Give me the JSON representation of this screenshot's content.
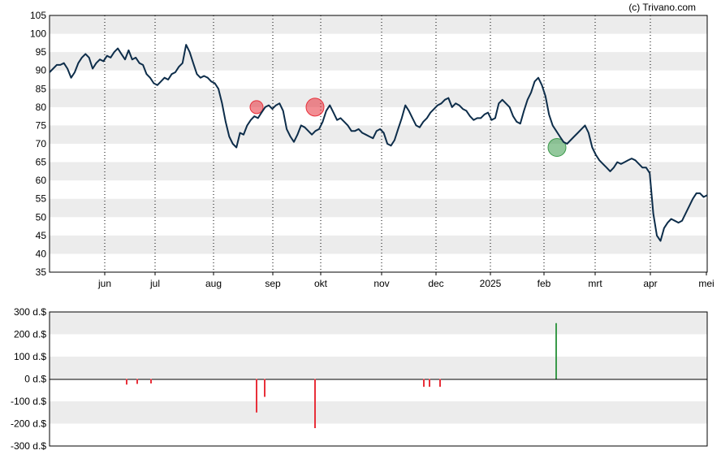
{
  "credit": "(c) Trivano.com",
  "chart_data": [
    {
      "type": "line",
      "title": "",
      "xlabel": "",
      "ylabel": "",
      "ylim": [
        35,
        105
      ],
      "yticks": [
        35,
        40,
        45,
        50,
        55,
        60,
        65,
        70,
        75,
        80,
        85,
        90,
        95,
        100,
        105
      ],
      "x_tick_labels": [
        "jun",
        "jul",
        "aug",
        "sep",
        "okt",
        "nov",
        "dec",
        "2025",
        "feb",
        "mrt",
        "apr",
        "mei"
      ],
      "grid": "alternating horizontal bands, dotted vertical month lines",
      "colors": {
        "line": "#0d2d4a",
        "sell": "#e8303a",
        "buy": "#3a9a4a",
        "band": "#ececec"
      },
      "series": [
        {
          "values": [
            89.5,
            90.5,
            91.5,
            91.5,
            92,
            90.5,
            88,
            89.5,
            92,
            93.5,
            94.5,
            93.5,
            90.5,
            92,
            93,
            92.5,
            94,
            93.5,
            95,
            96,
            94.5,
            93,
            95.5,
            93,
            93.5,
            92,
            91.5,
            89,
            88,
            86.5,
            86,
            87,
            88,
            87.5,
            89,
            89.5,
            91,
            92,
            97,
            95,
            92,
            89,
            88,
            88.5,
            88,
            87,
            86.5,
            85,
            81,
            76,
            72,
            70,
            69,
            73,
            72.5,
            75,
            76.5,
            77.5,
            77,
            78.5,
            80,
            80.5,
            79.5,
            80.5,
            81,
            79,
            74,
            72,
            70.5,
            72.5,
            75,
            74.5,
            73.5,
            72.5,
            73.5,
            74,
            76,
            79,
            80.5,
            78.5,
            76.5,
            77,
            76,
            75,
            73.5,
            73.5,
            74,
            73,
            72.5,
            72,
            71.5,
            73.5,
            74,
            73,
            70,
            69.5,
            71,
            74,
            77,
            80.5,
            79,
            77,
            75,
            74.5,
            76,
            77,
            78.5,
            79.5,
            80.5,
            81,
            82,
            82.5,
            80,
            81,
            80.5,
            79.5,
            79,
            77.5,
            76.5,
            77,
            77,
            78,
            78.5,
            76.5,
            77,
            81,
            82,
            81,
            80,
            77.5,
            76,
            75.5,
            79,
            82,
            84,
            87,
            88,
            86,
            83,
            78,
            75,
            73.5,
            72,
            70.5,
            70,
            71,
            72,
            73,
            74,
            75,
            73,
            69,
            67,
            65.5,
            64.5,
            63.5,
            62.5,
            63.5,
            65,
            64.5,
            65,
            65.5,
            66,
            65.5,
            64.5,
            63.5,
            63.5,
            62,
            51,
            45,
            43.5,
            47,
            48.5,
            49.5,
            49,
            48.5,
            49,
            51,
            53,
            55,
            56.5,
            56.5,
            55.5,
            56
          ]
        }
      ],
      "trade_markers": [
        {
          "type": "sell",
          "price": 80
        },
        {
          "type": "sell",
          "price": 80
        },
        {
          "type": "buy",
          "price": 69
        }
      ]
    },
    {
      "type": "bar",
      "title": "",
      "xlabel": "",
      "ylabel": "",
      "ylim": [
        -300,
        300
      ],
      "yticks": [
        -300,
        -200,
        -100,
        0,
        100,
        200,
        300
      ],
      "ytick_labels": [
        "-300 d.$",
        "-200 d.$",
        "-100 d.$",
        "0 d.$",
        "100 d.$",
        "200 d.$",
        "300 d.$"
      ],
      "series": [
        {
          "values": [
            -25,
            -22,
            -20,
            -150,
            -80,
            -220,
            -35,
            -35,
            -35,
            250
          ]
        }
      ]
    }
  ]
}
